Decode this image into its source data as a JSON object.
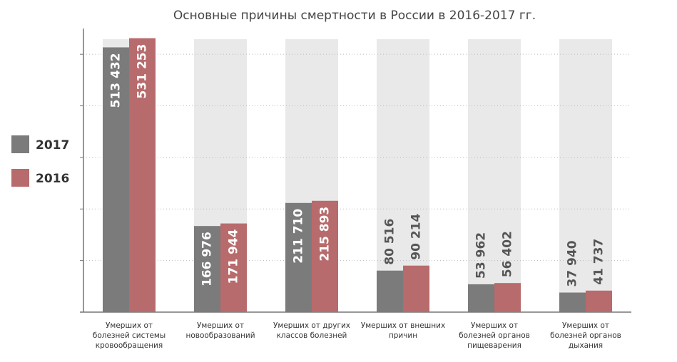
{
  "chart_data": {
    "type": "bar",
    "title": "Основные причины смертности в России в 2016-2017 гг.",
    "categories": [
      "Умерших от болезней системы кровообращения",
      "Умерших от новообразований",
      "Умерших от других классов болезней",
      "Умерших от внешних причин",
      "Умерших от болезней органов пищеварения",
      "Умерших от болезней органов дыхания"
    ],
    "series": [
      {
        "name": "2017",
        "color": "#7b7b7b",
        "values": [
          513432,
          166976,
          211710,
          80516,
          53962,
          37940
        ],
        "value_labels": [
          "513 432",
          "166 976",
          "211 710",
          "80 516",
          "53 962",
          "37 940"
        ]
      },
      {
        "name": "2016",
        "color": "#b86b6c",
        "values": [
          531253,
          171944,
          215893,
          90214,
          56402,
          41737
        ],
        "value_labels": [
          "531 253",
          "171 944",
          "215 893",
          "90 214",
          "56 402",
          "41 737"
        ]
      }
    ],
    "ylim": [
      0,
      550000
    ],
    "yticks": [
      0,
      100000,
      200000,
      300000,
      400000,
      500000
    ],
    "grid": true,
    "legend": "left"
  }
}
